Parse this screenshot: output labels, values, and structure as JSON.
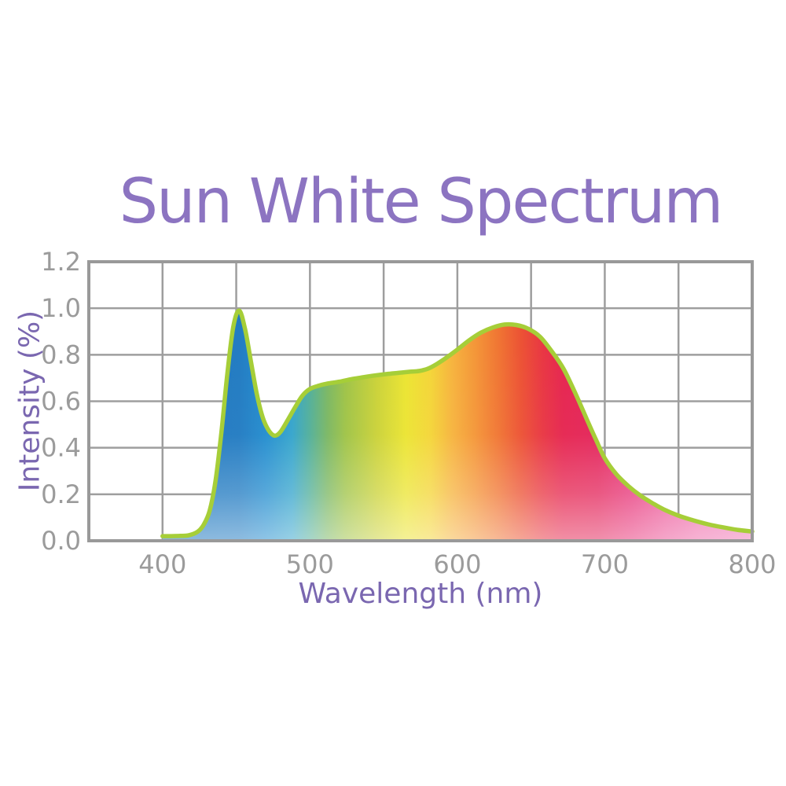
{
  "title": {
    "text": "Sun White Spectrum",
    "color": "#8c74c1"
  },
  "axis_label_color": "#7a67b0",
  "chart_data": {
    "type": "area",
    "title": "Sun White Spectrum",
    "xlabel": "Wavelength (nm)",
    "ylabel": "Intensity (%)",
    "xlim": [
      350,
      800
    ],
    "ylim": [
      0,
      1.2
    ],
    "grid": true,
    "x_grid_step_nm": 50,
    "y_grid_step": 0.2,
    "x_ticks": [
      {
        "value": 400,
        "label": "400"
      },
      {
        "value": 500,
        "label": "500"
      },
      {
        "value": 600,
        "label": "600"
      },
      {
        "value": 700,
        "label": "700"
      },
      {
        "value": 800,
        "label": "800"
      }
    ],
    "y_ticks": [
      {
        "value": 0.0,
        "label": "0.0"
      },
      {
        "value": 0.2,
        "label": "0.2"
      },
      {
        "value": 0.4,
        "label": "0.4"
      },
      {
        "value": 0.6,
        "label": "0.6"
      },
      {
        "value": 0.8,
        "label": "0.8"
      },
      {
        "value": 1.0,
        "label": "1.0"
      },
      {
        "value": 1.2,
        "label": "1.2"
      }
    ],
    "series": [
      {
        "name": "Sun White spectrum",
        "points": [
          [
            400,
            0.02
          ],
          [
            406,
            0.02
          ],
          [
            412,
            0.021
          ],
          [
            418,
            0.024
          ],
          [
            424,
            0.04
          ],
          [
            428,
            0.07
          ],
          [
            432,
            0.13
          ],
          [
            436,
            0.26
          ],
          [
            440,
            0.47
          ],
          [
            444,
            0.72
          ],
          [
            448,
            0.92
          ],
          [
            452,
            0.99
          ],
          [
            456,
            0.91
          ],
          [
            460,
            0.77
          ],
          [
            464,
            0.63
          ],
          [
            468,
            0.53
          ],
          [
            472,
            0.475
          ],
          [
            476,
            0.452
          ],
          [
            480,
            0.468
          ],
          [
            485,
            0.52
          ],
          [
            490,
            0.575
          ],
          [
            495,
            0.625
          ],
          [
            500,
            0.653
          ],
          [
            506,
            0.667
          ],
          [
            512,
            0.676
          ],
          [
            520,
            0.684
          ],
          [
            528,
            0.695
          ],
          [
            536,
            0.703
          ],
          [
            544,
            0.711
          ],
          [
            552,
            0.717
          ],
          [
            560,
            0.722
          ],
          [
            568,
            0.727
          ],
          [
            574,
            0.73
          ],
          [
            580,
            0.74
          ],
          [
            586,
            0.76
          ],
          [
            592,
            0.785
          ],
          [
            600,
            0.822
          ],
          [
            608,
            0.862
          ],
          [
            616,
            0.895
          ],
          [
            624,
            0.917
          ],
          [
            632,
            0.93
          ],
          [
            640,
            0.928
          ],
          [
            648,
            0.912
          ],
          [
            656,
            0.878
          ],
          [
            664,
            0.815
          ],
          [
            672,
            0.74
          ],
          [
            680,
            0.635
          ],
          [
            688,
            0.52
          ],
          [
            694,
            0.435
          ],
          [
            700,
            0.355
          ],
          [
            708,
            0.285
          ],
          [
            716,
            0.235
          ],
          [
            724,
            0.195
          ],
          [
            732,
            0.163
          ],
          [
            740,
            0.135
          ],
          [
            750,
            0.108
          ],
          [
            760,
            0.088
          ],
          [
            770,
            0.071
          ],
          [
            780,
            0.058
          ],
          [
            790,
            0.047
          ],
          [
            800,
            0.04
          ]
        ]
      }
    ],
    "curve_stroke_color": "#a6ce38",
    "grid_color": "#9e9e9e",
    "border_color": "#999999",
    "tick_color": "#9b9b9b",
    "bottom_fade": {
      "color": "#ffffff",
      "max_opacity": 0.5
    },
    "spectrum_gradient_stops": [
      {
        "nm": 400,
        "color": "#1b74bc"
      },
      {
        "nm": 452,
        "color": "#1e79c1"
      },
      {
        "nm": 470,
        "color": "#1f8bce"
      },
      {
        "nm": 488,
        "color": "#31a3cb"
      },
      {
        "nm": 500,
        "color": "#50ae97"
      },
      {
        "nm": 512,
        "color": "#79b660"
      },
      {
        "nm": 524,
        "color": "#9dc244"
      },
      {
        "nm": 545,
        "color": "#c9d135"
      },
      {
        "nm": 565,
        "color": "#ebe42e"
      },
      {
        "nm": 582,
        "color": "#f4d434"
      },
      {
        "nm": 597,
        "color": "#f6b13a"
      },
      {
        "nm": 612,
        "color": "#f49434"
      },
      {
        "nm": 628,
        "color": "#f0722f"
      },
      {
        "nm": 643,
        "color": "#ec4f30"
      },
      {
        "nm": 658,
        "color": "#e8323f"
      },
      {
        "nm": 672,
        "color": "#e5214d"
      },
      {
        "nm": 695,
        "color": "#e32158"
      },
      {
        "nm": 718,
        "color": "#e73177"
      },
      {
        "nm": 742,
        "color": "#eb5095"
      },
      {
        "nm": 765,
        "color": "#ee69a9"
      },
      {
        "nm": 800,
        "color": "#f07bba"
      }
    ]
  }
}
